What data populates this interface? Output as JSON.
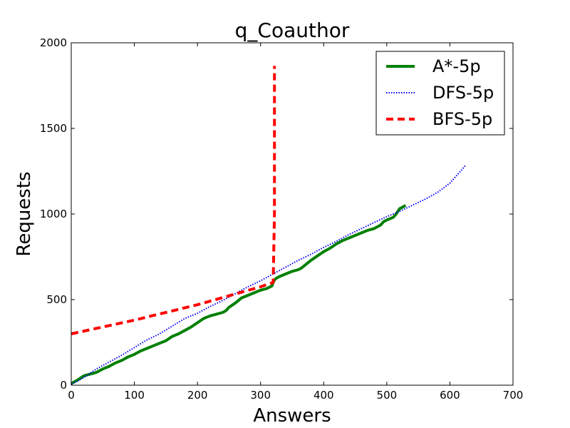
{
  "chart_data": {
    "type": "line",
    "title": "q_Coauthor",
    "xlabel": "Answers",
    "ylabel": "Requests",
    "xlim": [
      0,
      700
    ],
    "ylim": [
      0,
      2000
    ],
    "xticks": [
      0,
      100,
      200,
      300,
      400,
      500,
      600,
      700
    ],
    "yticks": [
      0,
      500,
      1000,
      1500,
      2000
    ],
    "grid": false,
    "legend_position": "upper-right",
    "series": [
      {
        "name": "A*-5p",
        "color": "#008000",
        "style": "solid",
        "x": [
          0,
          10,
          20,
          30,
          40,
          50,
          60,
          70,
          80,
          90,
          100,
          110,
          120,
          130,
          140,
          150,
          160,
          170,
          180,
          190,
          200,
          210,
          220,
          230,
          240,
          245,
          250,
          260,
          270,
          280,
          290,
          300,
          310,
          318,
          320,
          322,
          325,
          330,
          340,
          350,
          360,
          365,
          370,
          380,
          390,
          400,
          410,
          420,
          430,
          440,
          450,
          460,
          470,
          480,
          490,
          495,
          500,
          510,
          515,
          520,
          530
        ],
        "y": [
          10,
          30,
          55,
          65,
          75,
          95,
          110,
          130,
          145,
          165,
          180,
          200,
          215,
          230,
          245,
          260,
          285,
          300,
          320,
          340,
          365,
          390,
          405,
          415,
          425,
          435,
          455,
          480,
          510,
          525,
          540,
          555,
          565,
          580,
          600,
          615,
          625,
          635,
          650,
          665,
          675,
          685,
          700,
          730,
          755,
          780,
          800,
          825,
          845,
          860,
          875,
          890,
          905,
          915,
          935,
          955,
          965,
          980,
          1000,
          1030,
          1050
        ]
      },
      {
        "name": "DFS-5p",
        "color": "#0000ff",
        "style": "dotted",
        "x": [
          0,
          20,
          40,
          60,
          80,
          100,
          120,
          140,
          160,
          180,
          200,
          220,
          240,
          260,
          280,
          300,
          320,
          340,
          360,
          380,
          400,
          420,
          440,
          460,
          480,
          500,
          520,
          540,
          560,
          580,
          600,
          625
        ],
        "y": [
          5,
          45,
          95,
          135,
          175,
          220,
          265,
          300,
          345,
          390,
          420,
          460,
          495,
          535,
          575,
          610,
          650,
          690,
          730,
          765,
          805,
          840,
          880,
          915,
          950,
          985,
          1015,
          1050,
          1085,
          1125,
          1180,
          1285
        ]
      },
      {
        "name": "BFS-5p",
        "color": "#ff0000",
        "style": "dashed",
        "x": [
          0,
          100,
          200,
          300,
          320,
          322,
          322
        ],
        "y": [
          300,
          380,
          470,
          575,
          600,
          1000,
          1865
        ]
      }
    ]
  }
}
